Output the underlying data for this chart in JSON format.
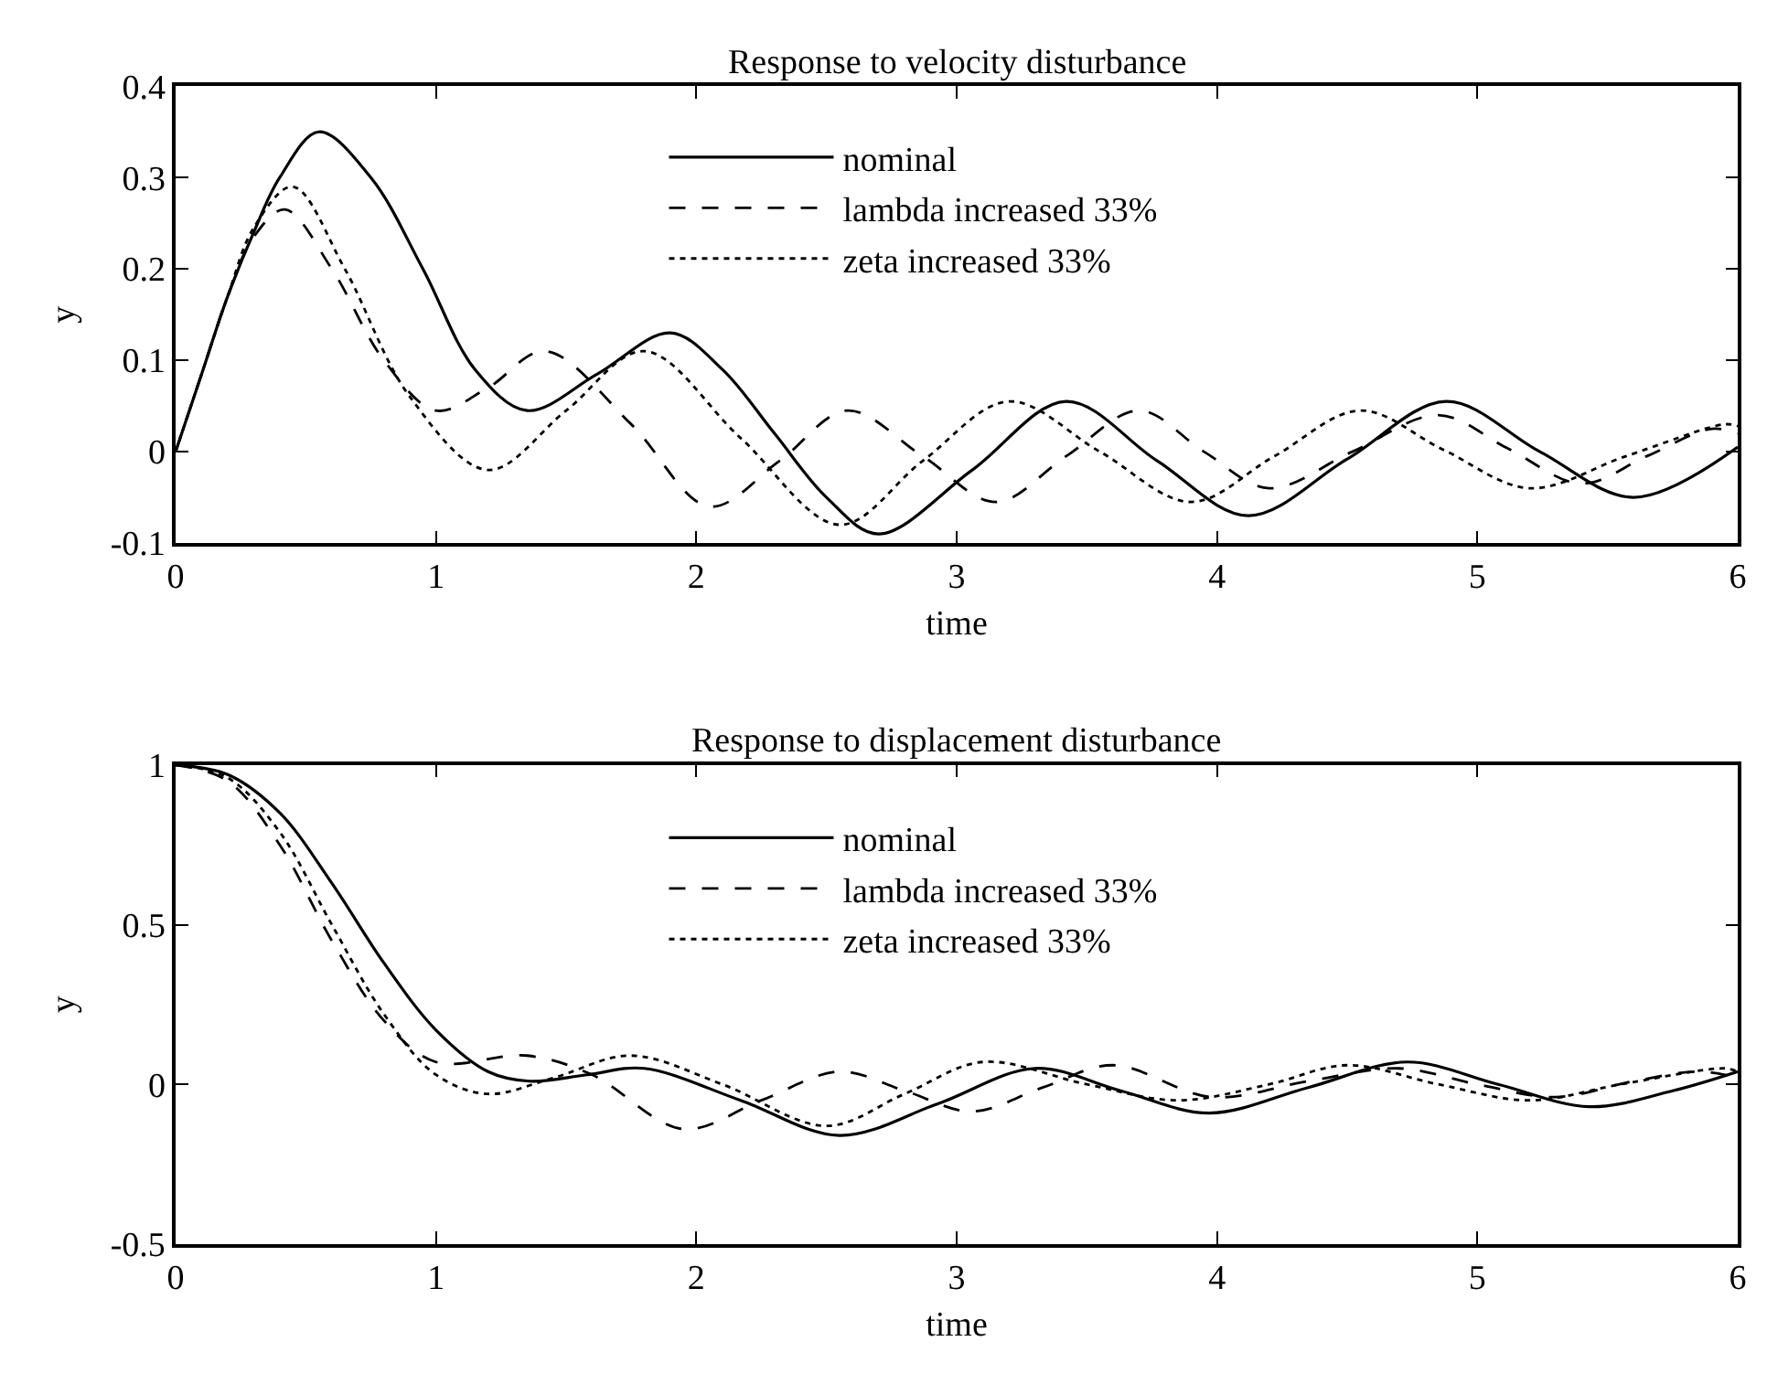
{
  "chart_data": [
    {
      "type": "line",
      "title": "Response to velocity disturbance",
      "xlabel": "time",
      "ylabel": "y",
      "xlim": [
        0,
        6
      ],
      "xticks": [
        0,
        1,
        2,
        3,
        4,
        5,
        6
      ],
      "ylim": [
        -0.1,
        0.4
      ],
      "yticks": [
        -0.1,
        0,
        0.1,
        0.2,
        0.3,
        0.4
      ],
      "legend": "top",
      "marker": "none",
      "series": [
        {
          "name": "nominal",
          "color": "#000000",
          "line_style": "solid",
          "x": [
            0,
            0.1,
            0.2,
            0.3,
            0.4,
            0.55,
            0.75,
            0.95,
            1.15,
            1.35,
            1.62,
            1.9,
            2.1,
            2.3,
            2.5,
            2.7,
            3.06,
            3.42,
            3.77,
            4.12,
            4.5,
            4.88,
            5.24,
            5.6,
            6
          ],
          "values": [
            0,
            0.085,
            0.17,
            0.24,
            0.3,
            0.35,
            0.3,
            0.2,
            0.09,
            0.045,
            0.085,
            0.13,
            0.09,
            0.02,
            -0.05,
            -0.09,
            -0.02,
            0.055,
            -0.01,
            -0.07,
            -0.008,
            0.055,
            0.0,
            -0.05,
            0.005
          ]
        },
        {
          "name": "lambda increased 33%",
          "color": "#000000",
          "line_style": "dashed",
          "x": [
            0,
            0.1,
            0.2,
            0.3,
            0.42,
            0.6,
            0.8,
            1.0,
            1.2,
            1.42,
            1.75,
            2.05,
            2.32,
            2.58,
            2.87,
            3.15,
            3.42,
            3.7,
            3.95,
            4.2,
            4.52,
            4.85,
            5.12,
            5.4,
            5.65,
            5.9,
            6
          ],
          "values": [
            0,
            0.085,
            0.17,
            0.235,
            0.265,
            0.2,
            0.1,
            0.045,
            0.07,
            0.11,
            0.03,
            -0.06,
            -0.01,
            0.045,
            -0.005,
            -0.055,
            -0.005,
            0.045,
            0.0,
            -0.04,
            0.0,
            0.04,
            0.003,
            -0.035,
            -0.005,
            0.025,
            0.02
          ]
        },
        {
          "name": "zeta increased 33%",
          "color": "#000000",
          "line_style": "dotted",
          "x": [
            0,
            0.1,
            0.2,
            0.3,
            0.45,
            0.65,
            0.9,
            1.2,
            1.5,
            1.8,
            2.17,
            2.55,
            2.87,
            3.2,
            3.55,
            3.9,
            4.22,
            4.55,
            4.87,
            5.2,
            5.57,
            5.95,
            6
          ],
          "values": [
            0,
            0.085,
            0.17,
            0.245,
            0.29,
            0.2,
            0.06,
            -0.02,
            0.045,
            0.11,
            0.015,
            -0.08,
            -0.01,
            0.055,
            0.0,
            -0.055,
            -0.005,
            0.045,
            0.002,
            -0.04,
            -0.005,
            0.03,
            0.028
          ]
        }
      ]
    },
    {
      "type": "line",
      "title": "Response to displacement disturbance",
      "xlabel": "time",
      "ylabel": "y",
      "xlim": [
        0,
        6
      ],
      "xticks": [
        0,
        1,
        2,
        3,
        4,
        5,
        6
      ],
      "ylim": [
        -0.5,
        1
      ],
      "yticks": [
        -0.5,
        0,
        0.5,
        1
      ],
      "legend": "top",
      "marker": "none",
      "series": [
        {
          "name": "nominal",
          "color": "#000000",
          "line_style": "solid",
          "x": [
            0,
            0.2,
            0.4,
            0.6,
            0.8,
            1.0,
            1.2,
            1.36,
            1.58,
            1.8,
            2.17,
            2.55,
            2.93,
            3.3,
            3.63,
            3.97,
            4.35,
            4.73,
            5.08,
            5.43,
            5.75,
            6
          ],
          "values": [
            1,
            0.97,
            0.85,
            0.63,
            0.38,
            0.17,
            0.04,
            0.01,
            0.03,
            0.05,
            -0.05,
            -0.16,
            -0.06,
            0.05,
            -0.02,
            -0.09,
            -0.01,
            0.07,
            0.0,
            -0.07,
            -0.02,
            0.04
          ]
        },
        {
          "name": "lambda increased 33%",
          "color": "#000000",
          "line_style": "dashed",
          "x": [
            0,
            0.2,
            0.4,
            0.6,
            0.8,
            1.0,
            1.35,
            1.6,
            1.95,
            2.25,
            2.55,
            2.8,
            3.06,
            3.33,
            3.6,
            3.98,
            4.35,
            4.7,
            5.0,
            5.3,
            5.6,
            5.85,
            6
          ],
          "values": [
            1,
            0.95,
            0.75,
            0.45,
            0.2,
            0.07,
            0.09,
            0.03,
            -0.14,
            -0.05,
            0.04,
            -0.02,
            -0.085,
            -0.01,
            0.06,
            -0.04,
            0.01,
            0.05,
            0.0,
            -0.04,
            0.01,
            0.04,
            0.02
          ]
        },
        {
          "name": "zeta increased 33%",
          "color": "#000000",
          "line_style": "dotted",
          "x": [
            0,
            0.2,
            0.4,
            0.6,
            0.8,
            1.0,
            1.2,
            1.45,
            1.75,
            2.1,
            2.5,
            2.8,
            3.1,
            3.5,
            3.85,
            4.2,
            4.5,
            4.85,
            5.2,
            5.55,
            5.95,
            6
          ],
          "values": [
            1,
            0.96,
            0.79,
            0.5,
            0.22,
            0.03,
            -0.03,
            0.02,
            0.09,
            0.0,
            -0.13,
            -0.03,
            0.07,
            0.0,
            -0.05,
            0.0,
            0.06,
            0.0,
            -0.05,
            0.0,
            0.05,
            0.04
          ]
        }
      ]
    }
  ]
}
